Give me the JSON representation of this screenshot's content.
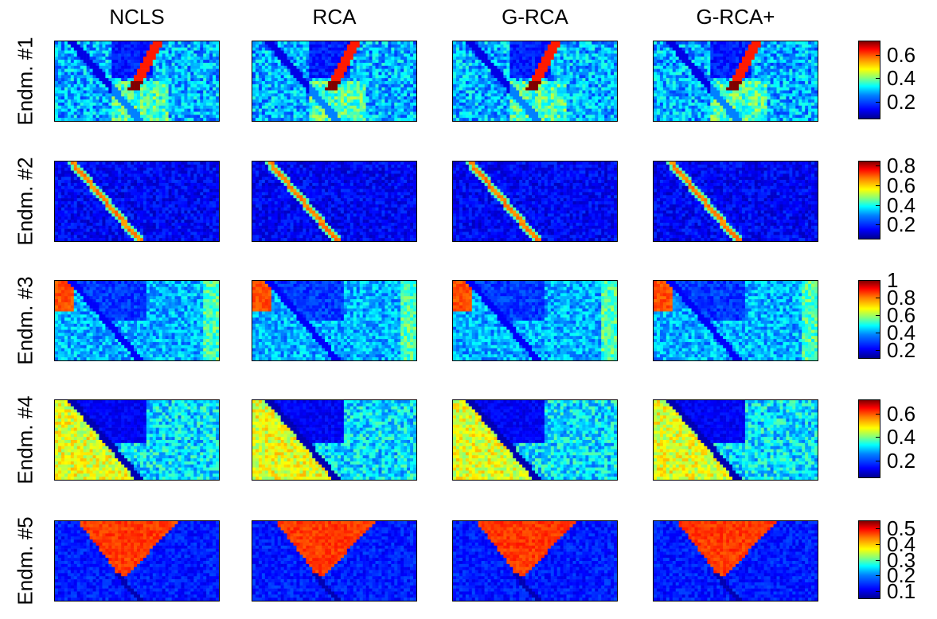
{
  "columns": [
    "NCLS",
    "RCA",
    "G-RCA",
    "G-RCA+"
  ],
  "rows": [
    {
      "label": "Endm. #1",
      "colorbar_ticks": [
        "0.6",
        "0.4",
        "0.2"
      ],
      "tick_values": [
        0.6,
        0.4,
        0.2
      ],
      "range": [
        0.05,
        0.72
      ],
      "pattern": "road-rim"
    },
    {
      "label": "Endm. #2",
      "colorbar_ticks": [
        "0.8",
        "0.6",
        "0.4",
        "0.2"
      ],
      "tick_values": [
        0.8,
        0.6,
        0.4,
        0.2
      ],
      "range": [
        0.05,
        0.85
      ],
      "pattern": "road"
    },
    {
      "label": "Endm. #3",
      "colorbar_ticks": [
        "1",
        "0.8",
        "0.6",
        "0.4",
        "0.2"
      ],
      "tick_values": [
        1,
        0.8,
        0.6,
        0.4,
        0.2
      ],
      "range": [
        0.1,
        1.0
      ],
      "pattern": "corner"
    },
    {
      "label": "Endm. #4",
      "colorbar_ticks": [
        "0.6",
        "0.4",
        "0.2"
      ],
      "tick_values": [
        0.6,
        0.4,
        0.2
      ],
      "range": [
        0.05,
        0.72
      ],
      "pattern": "field-left"
    },
    {
      "label": "Endm. #5",
      "colorbar_ticks": [
        "0.5",
        "0.4",
        "0.3",
        "0.2",
        "0.1"
      ],
      "tick_values": [
        0.5,
        0.4,
        0.3,
        0.2,
        0.1
      ],
      "range": [
        0.05,
        0.55
      ],
      "pattern": "triangle"
    }
  ],
  "colormap": "jet"
}
